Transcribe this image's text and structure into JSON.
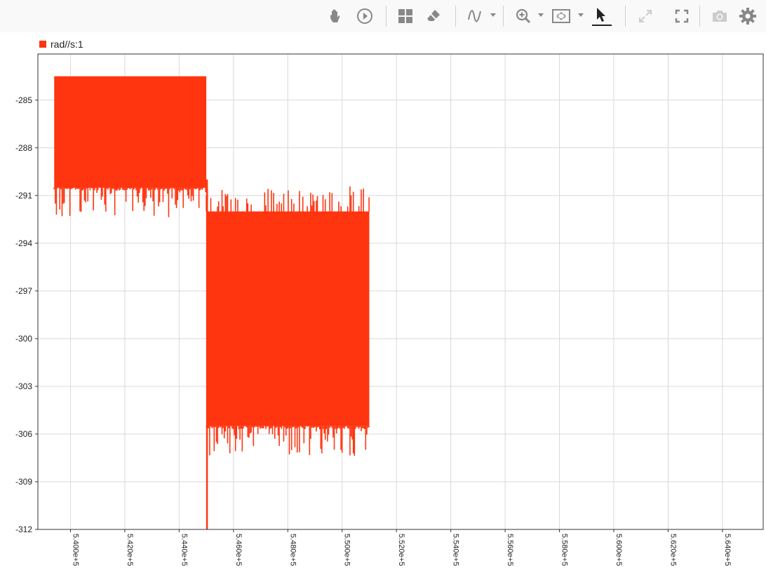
{
  "toolbar": {
    "icons": [
      "hand-icon",
      "play-icon",
      "layout-grid-icon",
      "eraser-icon",
      "signal-icon",
      "zoom-in-icon",
      "fit-view-icon",
      "pointer-icon",
      "expand-icon",
      "fullscreen-icon",
      "camera-icon",
      "gear-icon"
    ],
    "colors": {
      "icon": "#888888",
      "active_icon": "#222222",
      "disabled_icon": "#cccccc"
    }
  },
  "chart_data": {
    "type": "line",
    "series": [
      {
        "name": "rad//s:1",
        "color": "#ff3510",
        "segments": [
          {
            "x_start": 539400,
            "x_end": 545000,
            "y_min": 290.5,
            "y_max": 283.5
          },
          {
            "x_start": 545000,
            "x_end": 551000,
            "y_min": 305.5,
            "y_max": 292.0
          }
        ]
      }
    ],
    "y_ticks": [
      "-285",
      "-288",
      "-291",
      "-294",
      "-297",
      "-300",
      "-303",
      "-306",
      "-309",
      "-312"
    ],
    "y_tick_values": [
      -285,
      -288,
      -291,
      -294,
      -297,
      -300,
      -303,
      -306,
      -309,
      -312
    ],
    "x_ticks": [
      "5.400e+5",
      "5.420e+5",
      "5.440e+5",
      "5.460e+5",
      "5.480e+5",
      "5.500e+5",
      "5.520e+5",
      "5.540e+5",
      "5.560e+5",
      "5.580e+5",
      "5.600e+5",
      "5.620e+5",
      "5.640e+5"
    ],
    "x_tick_values": [
      540000,
      542000,
      544000,
      546000,
      548000,
      550000,
      552000,
      554000,
      556000,
      558000,
      560000,
      562000,
      564000
    ],
    "xlim": [
      538800,
      565500
    ],
    "ylim": [
      -312,
      -282.1
    ],
    "grid": true,
    "legend_position": "top-left"
  }
}
